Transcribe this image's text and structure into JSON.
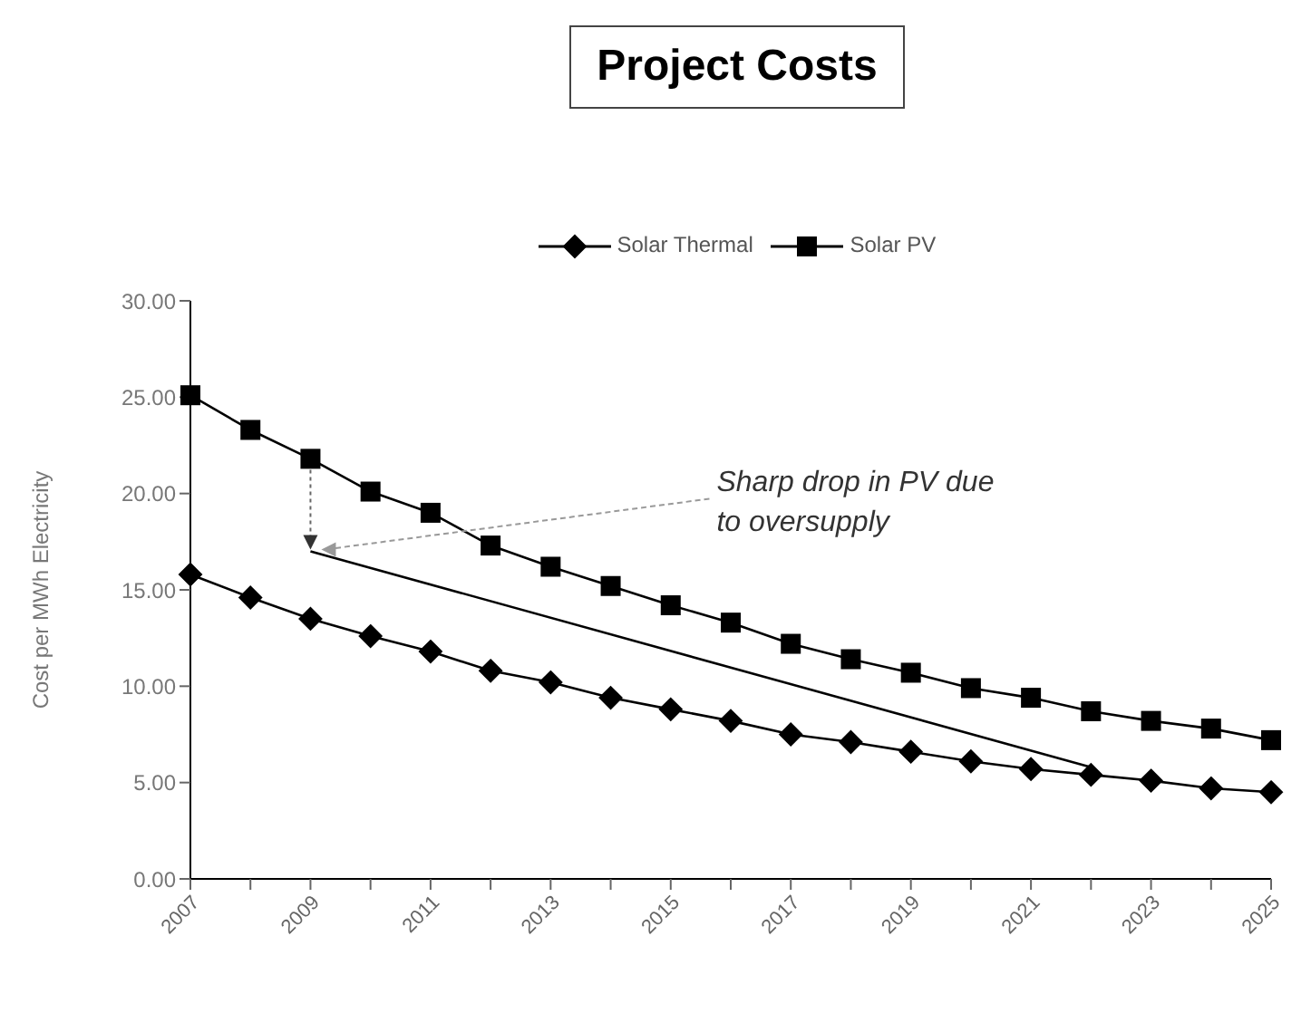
{
  "chart_data": {
    "type": "line",
    "title": "Project Costs",
    "ylabel": "Cost per MWh Electricity",
    "categories": [
      "2007",
      null,
      "2009",
      null,
      "2011",
      null,
      "2013",
      null,
      "2015",
      null,
      "2017",
      null,
      "2019",
      null,
      "2021",
      null,
      "2023",
      null,
      "2025"
    ],
    "series": [
      {
        "name": "Solar Thermal",
        "color": "#000000",
        "marker": "diamond",
        "values": [
          15.8,
          14.6,
          13.5,
          12.6,
          11.8,
          10.8,
          10.2,
          9.4,
          8.8,
          8.2,
          7.5,
          7.1,
          6.6,
          6.1,
          5.7,
          5.4,
          5.1,
          4.7,
          4.5
        ]
      },
      {
        "name": "Solar PV",
        "color": "#000000",
        "marker": "square",
        "values": [
          25.1,
          23.3,
          21.8,
          20.1,
          19.0,
          17.3,
          16.2,
          15.2,
          14.2,
          13.3,
          12.2,
          11.4,
          10.7,
          9.9,
          9.4,
          8.7,
          8.2,
          7.8,
          7.2
        ]
      },
      {
        "color": "#000000",
        "marker": "none",
        "values": [
          null,
          null,
          17.0,
          null,
          null,
          null,
          null,
          null,
          null,
          null,
          null,
          null,
          null,
          null,
          null,
          5.8,
          null,
          null,
          null
        ]
      }
    ],
    "ylim": [
      0,
      30
    ],
    "yticks": [
      {
        "value": 0,
        "label": "0.00"
      },
      {
        "value": 5,
        "label": "5.00"
      },
      {
        "value": 10,
        "label": "10.00"
      },
      {
        "value": 15,
        "label": "15.00"
      },
      {
        "value": 20,
        "label": "20.00"
      },
      {
        "value": 25,
        "label": "25.00"
      },
      {
        "value": 30,
        "label": "30.00"
      }
    ],
    "annotations": [
      {
        "text": "Sharp drop in PV due to oversupply",
        "x": "2009",
        "y": 17.0
      }
    ],
    "grid": false,
    "legend": "top",
    "line_style": "solid"
  }
}
